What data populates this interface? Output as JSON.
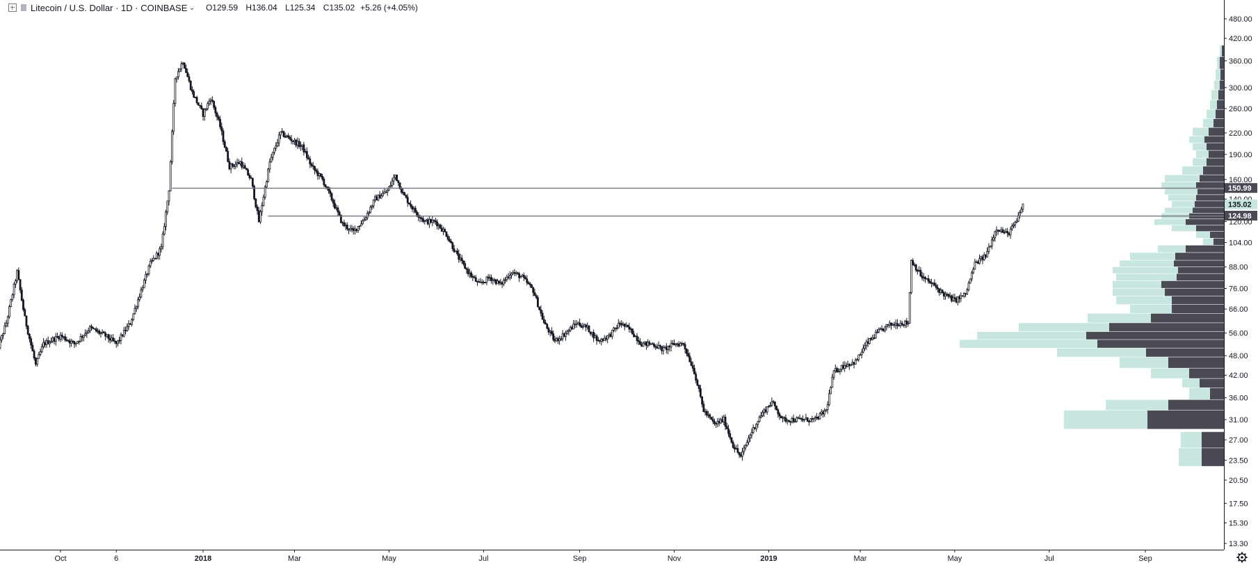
{
  "header": {
    "symbol": "Litecoin / U.S. Dollar · 1D · COINBASE",
    "open_label": "O",
    "open": "129.59",
    "high_label": "H",
    "high": "136.04",
    "low_label": "L",
    "low": "125.34",
    "close_label": "C",
    "close": "135.02",
    "change": "+5.26 (+4.05%)"
  },
  "colors": {
    "candle": "#131722",
    "hline": "#787b86",
    "profile_dark": "#4a4a55",
    "profile_light": "#c8e6e0",
    "tag_bg": "#4a4a55",
    "tag_text": "#ffffff",
    "price_tag_bg": "#c8e6e0"
  },
  "icons": {
    "settings": "gear-icon",
    "symbol_toggle": "toggle-icon"
  },
  "chart_data": {
    "type": "candlestick",
    "title": "Litecoin / U.S. Dollar · 1D · COINBASE",
    "y_scale": "log",
    "y_ticks": [
      "480.00",
      "420.00",
      "360.00",
      "300.00",
      "260.00",
      "220.00",
      "190.00",
      "160.00",
      "140.00",
      "120.00",
      "104.00",
      "88.00",
      "76.00",
      "66.00",
      "56.00",
      "48.00",
      "42.00",
      "36.00",
      "31.00",
      "27.00",
      "23.50",
      "20.50",
      "17.50",
      "15.30",
      "13.30"
    ],
    "y_tick_values": [
      480,
      420,
      360,
      300,
      260,
      220,
      190,
      160,
      140,
      120,
      104,
      88,
      76,
      66,
      56,
      48,
      42,
      36,
      31,
      27,
      23.5,
      20.5,
      17.5,
      15.3,
      13.3
    ],
    "x_ticks": [
      {
        "label": "Oct",
        "date": "2017-10-01",
        "bold": false
      },
      {
        "label": "6",
        "date": "2017-11-06",
        "bold": false
      },
      {
        "label": "2018",
        "date": "2018-01-01",
        "bold": true
      },
      {
        "label": "Mar",
        "date": "2018-03-01",
        "bold": false
      },
      {
        "label": "May",
        "date": "2018-05-01",
        "bold": false
      },
      {
        "label": "Jul",
        "date": "2018-07-01",
        "bold": false
      },
      {
        "label": "Sep",
        "date": "2018-09-01",
        "bold": false
      },
      {
        "label": "Nov",
        "date": "2018-11-01",
        "bold": false
      },
      {
        "label": "2019",
        "date": "2019-01-01",
        "bold": true
      },
      {
        "label": "Mar",
        "date": "2019-03-01",
        "bold": false
      },
      {
        "label": "May",
        "date": "2019-05-01",
        "bold": false
      },
      {
        "label": "Jul",
        "date": "2019-07-01",
        "bold": false
      },
      {
        "label": "Sep",
        "date": "2019-09-01",
        "bold": false
      }
    ],
    "price_path": [
      [
        "2017-08-20",
        48
      ],
      [
        "2017-08-27",
        60
      ],
      [
        "2017-09-03",
        85
      ],
      [
        "2017-09-08",
        62
      ],
      [
        "2017-09-15",
        45
      ],
      [
        "2017-09-20",
        52
      ],
      [
        "2017-10-01",
        55
      ],
      [
        "2017-10-10",
        52
      ],
      [
        "2017-10-20",
        58
      ],
      [
        "2017-10-30",
        55
      ],
      [
        "2017-11-06",
        52
      ],
      [
        "2017-11-15",
        60
      ],
      [
        "2017-11-22",
        75
      ],
      [
        "2017-11-28",
        90
      ],
      [
        "2017-12-05",
        100
      ],
      [
        "2017-12-10",
        150
      ],
      [
        "2017-12-14",
        320
      ],
      [
        "2017-12-19",
        360
      ],
      [
        "2017-12-25",
        290
      ],
      [
        "2018-01-01",
        250
      ],
      [
        "2018-01-06",
        280
      ],
      [
        "2018-01-12",
        230
      ],
      [
        "2018-01-18",
        175
      ],
      [
        "2018-01-25",
        180
      ],
      [
        "2018-02-01",
        160
      ],
      [
        "2018-02-06",
        120
      ],
      [
        "2018-02-13",
        180
      ],
      [
        "2018-02-20",
        220
      ],
      [
        "2018-02-27",
        210
      ],
      [
        "2018-03-06",
        200
      ],
      [
        "2018-03-12",
        175
      ],
      [
        "2018-03-19",
        160
      ],
      [
        "2018-03-25",
        140
      ],
      [
        "2018-04-01",
        118
      ],
      [
        "2018-04-08",
        112
      ],
      [
        "2018-04-15",
        122
      ],
      [
        "2018-04-22",
        140
      ],
      [
        "2018-04-30",
        148
      ],
      [
        "2018-05-05",
        165
      ],
      [
        "2018-05-10",
        145
      ],
      [
        "2018-05-17",
        130
      ],
      [
        "2018-05-24",
        120
      ],
      [
        "2018-05-31",
        120
      ],
      [
        "2018-06-07",
        110
      ],
      [
        "2018-06-14",
        95
      ],
      [
        "2018-06-21",
        85
      ],
      [
        "2018-06-28",
        78
      ],
      [
        "2018-07-05",
        82
      ],
      [
        "2018-07-12",
        78
      ],
      [
        "2018-07-19",
        85
      ],
      [
        "2018-07-26",
        82
      ],
      [
        "2018-08-02",
        75
      ],
      [
        "2018-08-09",
        60
      ],
      [
        "2018-08-16",
        53
      ],
      [
        "2018-08-23",
        56
      ],
      [
        "2018-08-30",
        60
      ],
      [
        "2018-09-06",
        58
      ],
      [
        "2018-09-13",
        53
      ],
      [
        "2018-09-20",
        55
      ],
      [
        "2018-09-27",
        60
      ],
      [
        "2018-10-04",
        57
      ],
      [
        "2018-10-11",
        52
      ],
      [
        "2018-10-18",
        52
      ],
      [
        "2018-10-25",
        50
      ],
      [
        "2018-11-01",
        52
      ],
      [
        "2018-11-07",
        52
      ],
      [
        "2018-11-14",
        43
      ],
      [
        "2018-11-20",
        33
      ],
      [
        "2018-11-27",
        30
      ],
      [
        "2018-12-03",
        31
      ],
      [
        "2018-12-09",
        26
      ],
      [
        "2018-12-14",
        24
      ],
      [
        "2018-12-20",
        28
      ],
      [
        "2018-12-27",
        32
      ],
      [
        "2019-01-03",
        35
      ],
      [
        "2019-01-10",
        31
      ],
      [
        "2019-01-17",
        31
      ],
      [
        "2019-01-24",
        31
      ],
      [
        "2019-01-31",
        31
      ],
      [
        "2019-02-07",
        33
      ],
      [
        "2019-02-12",
        43
      ],
      [
        "2019-02-19",
        45
      ],
      [
        "2019-02-26",
        46
      ],
      [
        "2019-03-05",
        52
      ],
      [
        "2019-03-12",
        56
      ],
      [
        "2019-03-19",
        59
      ],
      [
        "2019-03-26",
        60
      ],
      [
        "2019-04-01",
        60
      ],
      [
        "2019-04-03",
        92
      ],
      [
        "2019-04-10",
        82
      ],
      [
        "2019-04-17",
        78
      ],
      [
        "2019-04-24",
        73
      ],
      [
        "2019-05-01",
        70
      ],
      [
        "2019-05-08",
        73
      ],
      [
        "2019-05-14",
        90
      ],
      [
        "2019-05-21",
        95
      ],
      [
        "2019-05-28",
        115
      ],
      [
        "2019-06-04",
        110
      ],
      [
        "2019-06-10",
        120
      ],
      [
        "2019-06-14",
        135
      ]
    ],
    "horizontal_levels": [
      {
        "label": "150.99",
        "value": 150.99,
        "start": "2017-12-12"
      },
      {
        "label": "124.98",
        "value": 124.98,
        "start": "2018-02-12"
      }
    ],
    "current_price": {
      "label": "135.02",
      "value": 135.02
    },
    "volume_profile": [
      {
        "low": 22.5,
        "high": 25.5,
        "dark": 32,
        "light": 65
      },
      {
        "low": 25.5,
        "high": 28.5,
        "dark": 32,
        "light": 62
      },
      {
        "low": 29.0,
        "high": 33.0,
        "dark": 110,
        "light": 230
      },
      {
        "low": 33.0,
        "high": 35.5,
        "dark": 80,
        "light": 170
      },
      {
        "low": 35.5,
        "high": 38.5,
        "dark": 20,
        "light": 50
      },
      {
        "low": 38.5,
        "high": 41.0,
        "dark": 35,
        "light": 60
      },
      {
        "low": 41.0,
        "high": 44.0,
        "dark": 50,
        "light": 105
      },
      {
        "low": 44.0,
        "high": 47.5,
        "dark": 80,
        "light": 150
      },
      {
        "low": 47.5,
        "high": 50.5,
        "dark": 112,
        "light": 240
      },
      {
        "low": 50.5,
        "high": 53.5,
        "dark": 182,
        "light": 380
      },
      {
        "low": 53.5,
        "high": 56.5,
        "dark": 198,
        "light": 355
      },
      {
        "low": 56.5,
        "high": 60.0,
        "dark": 165,
        "light": 295
      },
      {
        "low": 60.0,
        "high": 64.0,
        "dark": 105,
        "light": 196
      },
      {
        "low": 64.0,
        "high": 68.0,
        "dark": 75,
        "light": 135
      },
      {
        "low": 68.0,
        "high": 72.0,
        "dark": 75,
        "light": 155
      },
      {
        "low": 72.0,
        "high": 76.0,
        "dark": 85,
        "light": 160
      },
      {
        "low": 76.0,
        "high": 80.0,
        "dark": 90,
        "light": 160
      },
      {
        "low": 80.0,
        "high": 84.0,
        "dark": 68,
        "light": 155
      },
      {
        "low": 84.0,
        "high": 88.0,
        "dark": 66,
        "light": 160
      },
      {
        "low": 88.0,
        "high": 92.0,
        "dark": 72,
        "light": 150
      },
      {
        "low": 92.0,
        "high": 97.0,
        "dark": 70,
        "light": 135
      },
      {
        "low": 97.0,
        "high": 102.0,
        "dark": 55,
        "light": 95
      },
      {
        "low": 102.0,
        "high": 107.0,
        "dark": 15,
        "light": 30
      },
      {
        "low": 107.0,
        "high": 112.0,
        "dark": 20,
        "light": 40
      },
      {
        "low": 112.0,
        "high": 117.0,
        "dark": 40,
        "light": 75
      },
      {
        "low": 117.0,
        "high": 122.0,
        "dark": 55,
        "light": 100
      },
      {
        "low": 122.0,
        "high": 127.0,
        "dark": 50,
        "light": 90
      },
      {
        "low": 127.0,
        "high": 132.0,
        "dark": 45,
        "light": 85
      },
      {
        "low": 132.0,
        "high": 138.0,
        "dark": 42,
        "light": 75
      },
      {
        "low": 138.0,
        "high": 144.0,
        "dark": 40,
        "light": 80
      },
      {
        "low": 144.0,
        "high": 150.0,
        "dark": 38,
        "light": 85
      },
      {
        "low": 150.0,
        "high": 157.0,
        "dark": 40,
        "light": 90
      },
      {
        "low": 157.0,
        "high": 165.0,
        "dark": 35,
        "light": 85
      },
      {
        "low": 165.0,
        "high": 175.0,
        "dark": 30,
        "light": 60
      },
      {
        "low": 175.0,
        "high": 185.0,
        "dark": 25,
        "light": 45
      },
      {
        "low": 185.0,
        "high": 195.0,
        "dark": 22,
        "light": 40
      },
      {
        "low": 195.0,
        "high": 205.0,
        "dark": 25,
        "light": 45
      },
      {
        "low": 205.0,
        "high": 215.0,
        "dark": 28,
        "light": 50
      },
      {
        "low": 215.0,
        "high": 228.0,
        "dark": 22,
        "light": 45
      },
      {
        "low": 228.0,
        "high": 242.0,
        "dark": 15,
        "light": 30
      },
      {
        "low": 242.0,
        "high": 258.0,
        "dark": 12,
        "light": 25
      },
      {
        "low": 258.0,
        "high": 275.0,
        "dark": 10,
        "light": 20
      },
      {
        "low": 275.0,
        "high": 295.0,
        "dark": 8,
        "light": 18
      },
      {
        "low": 295.0,
        "high": 315.0,
        "dark": 6,
        "light": 14
      },
      {
        "low": 315.0,
        "high": 340.0,
        "dark": 5,
        "light": 12
      },
      {
        "low": 340.0,
        "high": 370.0,
        "dark": 6,
        "light": 10
      },
      {
        "low": 370.0,
        "high": 400.0,
        "dark": 3,
        "light": 6
      }
    ]
  }
}
